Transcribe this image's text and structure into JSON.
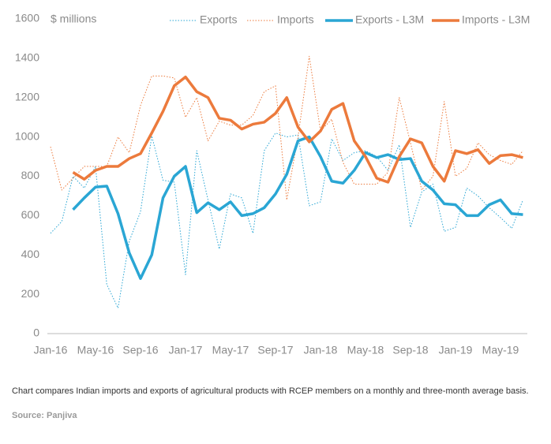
{
  "chart_data": {
    "type": "line",
    "y_label": "$ millions",
    "categories": [
      "Jan-16",
      null,
      null,
      null,
      "May-16",
      null,
      null,
      null,
      "Sep-16",
      null,
      null,
      null,
      "Jan-17",
      null,
      null,
      null,
      "May-17",
      null,
      null,
      null,
      "Sep-17",
      null,
      null,
      null,
      "Jan-18",
      null,
      null,
      null,
      "May-18",
      null,
      null,
      null,
      "Sep-18",
      null,
      null,
      null,
      "Jan-19",
      null,
      null,
      null,
      "May-19",
      null,
      null
    ],
    "series": [
      {
        "name": "Exports",
        "color": "#2aa6d4",
        "style": "dotted",
        "values": [
          510,
          570,
          800,
          740,
          850,
          250,
          130,
          470,
          620,
          1005,
          780,
          770,
          300,
          930,
          680,
          430,
          710,
          690,
          510,
          930,
          1020,
          1000,
          1010,
          650,
          670,
          990,
          880,
          920,
          930,
          900,
          830,
          960,
          540,
          720,
          760,
          520,
          540,
          740,
          700,
          640,
          590,
          535,
          680
        ]
      },
      {
        "name": "Imports",
        "color": "#ec7a3c",
        "style": "dotted",
        "values": [
          950,
          730,
          790,
          850,
          850,
          850,
          1000,
          920,
          1160,
          1310,
          1310,
          1300,
          1100,
          1200,
          980,
          1080,
          1060,
          1060,
          1110,
          1230,
          1260,
          680,
          1000,
          1410,
          1030,
          1090,
          870,
          760,
          760,
          760,
          820,
          1200,
          970,
          730,
          800,
          1180,
          800,
          840,
          970,
          910,
          880,
          860,
          930
        ]
      },
      {
        "name": "Exports - L3M",
        "color": "#2aa6d4",
        "style": "solid",
        "values": [
          null,
          null,
          630,
          690,
          745,
          750,
          610,
          410,
          280,
          400,
          690,
          800,
          850,
          615,
          665,
          630,
          670,
          600,
          610,
          640,
          710,
          810,
          980,
          1000,
          900,
          775,
          765,
          830,
          920,
          895,
          910,
          885,
          890,
          775,
          730,
          660,
          655,
          600,
          600,
          655,
          680,
          610,
          605
        ]
      },
      {
        "name": "Imports - L3M",
        "color": "#ec7a3c",
        "style": "solid",
        "values": [
          null,
          null,
          820,
          785,
          830,
          850,
          850,
          890,
          915,
          1020,
          1130,
          1260,
          1305,
          1230,
          1200,
          1095,
          1085,
          1040,
          1065,
          1075,
          1120,
          1200,
          1050,
          975,
          1030,
          1140,
          1170,
          980,
          900,
          790,
          770,
          900,
          990,
          970,
          850,
          775,
          930,
          915,
          935,
          865,
          905,
          910,
          895
        ]
      }
    ],
    "ylim": [
      0,
      1600
    ],
    "yticks": [
      0,
      200,
      400,
      600,
      800,
      1000,
      1200,
      1400,
      1600
    ],
    "legend": "top"
  },
  "caption": "Chart compares Indian imports and exports of agricultural products with RCEP members on a monthly and three-month average basis.",
  "source": "Source: Panjiva"
}
